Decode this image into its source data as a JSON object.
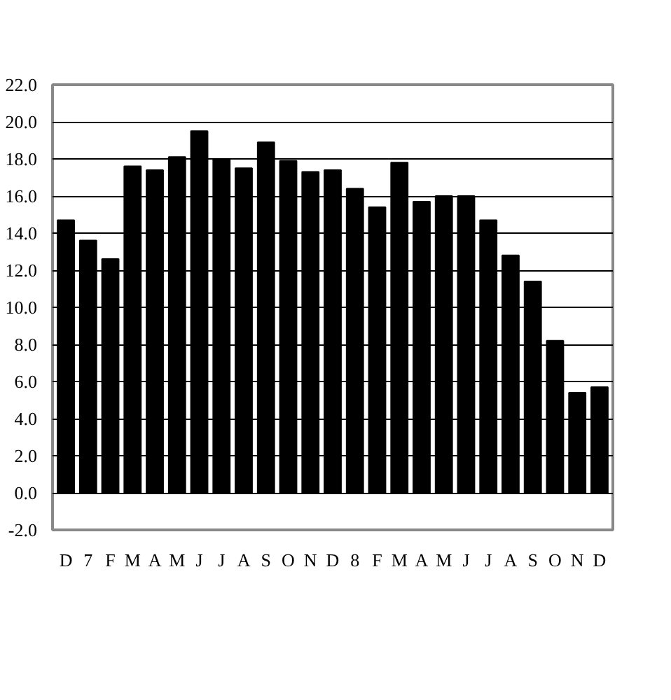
{
  "chart_data": {
    "type": "bar",
    "categories": [
      "D",
      "7",
      "F",
      "M",
      "A",
      "M",
      "J",
      "J",
      "A",
      "S",
      "O",
      "N",
      "D",
      "8",
      "F",
      "M",
      "A",
      "M",
      "J",
      "J",
      "A",
      "S",
      "O",
      "N",
      "D"
    ],
    "values": [
      14.7,
      13.6,
      12.6,
      17.6,
      17.4,
      18.1,
      19.5,
      18.0,
      17.5,
      18.9,
      17.9,
      17.3,
      17.4,
      16.4,
      15.4,
      17.8,
      15.7,
      16.0,
      16.0,
      14.7,
      12.8,
      11.4,
      8.2,
      5.4,
      5.7
    ],
    "color": "#000000",
    "ylim": [
      -2,
      22
    ],
    "yticks": [
      {
        "value": -2,
        "label": "-2.0"
      },
      {
        "value": 0,
        "label": "0.0"
      },
      {
        "value": 2,
        "label": "2.0"
      },
      {
        "value": 4,
        "label": "4.0"
      },
      {
        "value": 6,
        "label": "6.0"
      },
      {
        "value": 8,
        "label": "8.0"
      },
      {
        "value": 10,
        "label": "10.0"
      },
      {
        "value": 12,
        "label": "12.0"
      },
      {
        "value": 14,
        "label": "14.0"
      },
      {
        "value": 16,
        "label": "16.0"
      },
      {
        "value": 18,
        "label": "18.0"
      },
      {
        "value": 20,
        "label": "20.0"
      },
      {
        "value": 22,
        "label": "22.0"
      }
    ],
    "grid": "y"
  }
}
